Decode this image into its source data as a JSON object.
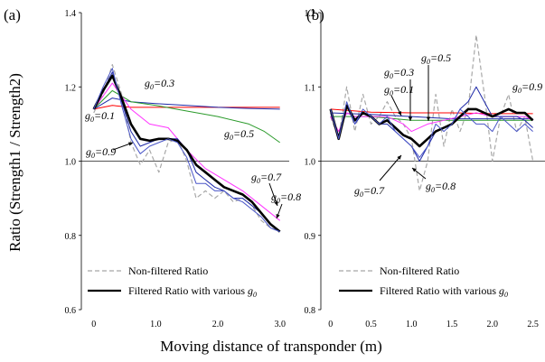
{
  "figure": {
    "ylabel": "Ratio (Strength1 / Strength2)",
    "xlabel": "Moving distance of transponder (m)"
  },
  "chart_data": [
    {
      "panel": "(a)",
      "type": "line",
      "ylim": [
        0.6,
        1.4
      ],
      "xlim": [
        -0.2,
        3.15
      ],
      "yticks": [
        "0.6",
        "0.8",
        "1.0",
        "1.2",
        "1.4"
      ],
      "xticks": [
        {
          "value": 0,
          "label": "0"
        },
        {
          "value": 1,
          "label": "1.0"
        },
        {
          "value": 2,
          "label": "2.0"
        },
        {
          "value": 3,
          "label": "3.0"
        }
      ],
      "reference_line": 1.0,
      "legend": [
        {
          "label": "Non-filtered Ratio",
          "style": "dashed",
          "color": "#a8a8a8"
        },
        {
          "label": "Filtered Ratio with various g0",
          "style": "solid",
          "color": "#000000"
        }
      ],
      "series": [
        {
          "name": "Non-filtered Ratio",
          "color": "#a8a8a8",
          "width": 1.2,
          "dash": "5,3",
          "x": [
            0,
            0.15,
            0.3,
            0.45,
            0.6,
            0.75,
            0.9,
            1.05,
            1.2,
            1.35,
            1.5,
            1.65,
            1.8,
            1.95,
            2.1,
            2.25,
            2.4,
            2.55,
            2.7,
            2.85,
            3.0
          ],
          "y": [
            1.13,
            1.18,
            1.26,
            1.18,
            1.05,
            0.99,
            1.03,
            0.97,
            1.05,
            1.06,
            1.0,
            0.9,
            0.92,
            0.9,
            0.92,
            0.89,
            0.9,
            0.88,
            0.84,
            0.82,
            0.81
          ]
        },
        {
          "name": "g0=0.1",
          "color": "#ff0000",
          "width": 1,
          "x": [
            0,
            0.3,
            0.6,
            1.0,
            1.5,
            2.0,
            2.5,
            3.0
          ],
          "y": [
            1.14,
            1.15,
            1.145,
            1.145,
            1.145,
            1.145,
            1.145,
            1.145
          ]
        },
        {
          "name": "g0=0.3",
          "color": "#1f2aa8",
          "width": 1,
          "x": [
            0,
            0.3,
            0.6,
            1.0,
            1.5,
            2.0,
            2.5,
            3.0
          ],
          "y": [
            1.14,
            1.17,
            1.16,
            1.155,
            1.15,
            1.145,
            1.142,
            1.14
          ]
        },
        {
          "name": "g0=0.5",
          "color": "#2a9a2a",
          "width": 1,
          "x": [
            0,
            0.3,
            0.6,
            1.0,
            1.5,
            2.0,
            2.5,
            2.75,
            3.0
          ],
          "y": [
            1.14,
            1.19,
            1.16,
            1.15,
            1.135,
            1.12,
            1.1,
            1.08,
            1.05
          ]
        },
        {
          "name": "g0=0.7",
          "color": "#ff33ff",
          "width": 1,
          "x": [
            0,
            0.3,
            0.6,
            0.9,
            1.2,
            1.5,
            1.8,
            2.1,
            2.4,
            2.7,
            3.0
          ],
          "y": [
            1.14,
            1.21,
            1.14,
            1.1,
            1.09,
            1.03,
            0.98,
            0.95,
            0.92,
            0.88,
            0.84
          ]
        },
        {
          "name": "g0=0.8",
          "color": "#1f2aa8",
          "width": 1,
          "x": [
            0,
            0.15,
            0.3,
            0.45,
            0.6,
            0.75,
            0.9,
            1.05,
            1.2,
            1.35,
            1.5,
            1.65,
            1.8,
            1.95,
            2.1,
            2.25,
            2.4,
            2.55,
            2.7,
            2.85,
            3.0
          ],
          "y": [
            1.14,
            1.19,
            1.24,
            1.16,
            1.08,
            1.04,
            1.05,
            1.06,
            1.06,
            1.06,
            1.03,
            0.97,
            0.95,
            0.93,
            0.92,
            0.9,
            0.9,
            0.88,
            0.86,
            0.83,
            0.81
          ]
        },
        {
          "name": "g0=0.9",
          "color": "#000000",
          "width": 2.6,
          "x": [
            0,
            0.15,
            0.3,
            0.45,
            0.6,
            0.75,
            0.9,
            1.05,
            1.2,
            1.35,
            1.5,
            1.65,
            1.8,
            1.95,
            2.1,
            2.25,
            2.4,
            2.55,
            2.7,
            2.85,
            3.0
          ],
          "y": [
            1.14,
            1.19,
            1.23,
            1.17,
            1.1,
            1.06,
            1.055,
            1.06,
            1.06,
            1.055,
            1.03,
            0.99,
            0.97,
            0.95,
            0.93,
            0.92,
            0.91,
            0.89,
            0.86,
            0.83,
            0.81
          ]
        },
        {
          "name": "g0=0.9 (blue)",
          "color": "#4a56c8",
          "width": 1,
          "x": [
            0,
            0.15,
            0.3,
            0.45,
            0.6,
            0.75,
            0.9,
            1.05,
            1.2,
            1.35,
            1.5,
            1.65,
            1.8,
            1.95,
            2.1,
            2.25,
            2.4,
            2.55,
            2.7,
            2.85,
            3.0
          ],
          "y": [
            1.14,
            1.2,
            1.25,
            1.15,
            1.06,
            1.02,
            1.04,
            1.05,
            1.06,
            1.05,
            1.01,
            0.94,
            0.94,
            0.92,
            0.92,
            0.9,
            0.89,
            0.87,
            0.85,
            0.82,
            0.81
          ]
        }
      ],
      "annotations": [
        {
          "text": "g0=0.3"
        },
        {
          "text": "g0=0.1"
        },
        {
          "text": "g0=0.5"
        },
        {
          "text": "g0=0.9"
        },
        {
          "text": "g0=0.7"
        },
        {
          "text": "g0=0.8"
        }
      ]
    },
    {
      "panel": "(b)",
      "type": "line",
      "ylim": [
        0.8,
        1.2
      ],
      "xlim": [
        -0.12,
        2.65
      ],
      "yticks": [
        "0.8",
        "0.9",
        "1.0",
        "1.1",
        "1.2"
      ],
      "xticks": [
        {
          "value": 0,
          "label": "0"
        },
        {
          "value": 0.5,
          "label": "0.5"
        },
        {
          "value": 1.0,
          "label": "1.0"
        },
        {
          "value": 1.5,
          "label": "1.5"
        },
        {
          "value": 2.0,
          "label": "2.0"
        },
        {
          "value": 2.5,
          "label": "2.5"
        }
      ],
      "reference_line": 1.0,
      "legend": [
        {
          "label": "Non-filtered Ratio",
          "style": "dashed",
          "color": "#a8a8a8"
        },
        {
          "label": "Filtered Ratio with various g0",
          "style": "solid",
          "color": "#000000"
        }
      ],
      "series": [
        {
          "name": "Non-filtered Ratio",
          "color": "#a8a8a8",
          "width": 1.2,
          "dash": "5,3",
          "x": [
            0,
            0.1,
            0.2,
            0.3,
            0.4,
            0.5,
            0.6,
            0.7,
            0.8,
            0.9,
            1.0,
            1.1,
            1.2,
            1.3,
            1.4,
            1.5,
            1.6,
            1.7,
            1.8,
            1.9,
            2.0,
            2.1,
            2.2,
            2.3,
            2.4,
            2.5
          ],
          "y": [
            1.06,
            1.03,
            1.1,
            1.04,
            1.09,
            1.05,
            1.06,
            1.08,
            1.06,
            1.05,
            1.03,
            0.96,
            1.0,
            1.09,
            1.02,
            1.07,
            1.04,
            1.07,
            1.17,
            1.09,
            1.0,
            1.06,
            1.09,
            1.04,
            1.06,
            1.0
          ]
        },
        {
          "name": "g0=0.1",
          "color": "#ff0000",
          "width": 1,
          "x": [
            0,
            0.5,
            1.0,
            1.5,
            2.0,
            2.5
          ],
          "y": [
            1.07,
            1.066,
            1.065,
            1.065,
            1.064,
            1.064
          ]
        },
        {
          "name": "g0=0.3",
          "color": "#1f2aa8",
          "width": 1,
          "x": [
            0,
            0.5,
            1.0,
            1.5,
            2.0,
            2.5
          ],
          "y": [
            1.065,
            1.063,
            1.06,
            1.057,
            1.057,
            1.057
          ]
        },
        {
          "name": "g0=0.5",
          "color": "#2a9a2a",
          "width": 1,
          "x": [
            0,
            0.5,
            1.0,
            1.5,
            2.0,
            2.5
          ],
          "y": [
            1.06,
            1.06,
            1.055,
            1.055,
            1.055,
            1.055
          ]
        },
        {
          "name": "g0=0.7",
          "color": "#ff33ff",
          "width": 1,
          "x": [
            0,
            0.1,
            0.2,
            0.3,
            0.5,
            0.7,
            0.8,
            0.9,
            1.0,
            1.2,
            1.4,
            1.6,
            1.8,
            2.0,
            2.2,
            2.4,
            2.5
          ],
          "y": [
            1.06,
            1.04,
            1.065,
            1.06,
            1.06,
            1.06,
            1.055,
            1.05,
            1.04,
            1.05,
            1.055,
            1.06,
            1.065,
            1.06,
            1.06,
            1.06,
            1.055
          ]
        },
        {
          "name": "g0=0.8",
          "color": "#1f2aa8",
          "width": 1,
          "x": [
            0,
            0.1,
            0.2,
            0.3,
            0.4,
            0.5,
            0.6,
            0.7,
            0.8,
            0.9,
            1.0,
            1.1,
            1.2,
            1.3,
            1.4,
            1.5,
            1.6,
            1.7,
            1.8,
            1.9,
            2.0,
            2.1,
            2.2,
            2.3,
            2.4,
            2.5
          ],
          "y": [
            1.065,
            1.03,
            1.075,
            1.05,
            1.065,
            1.06,
            1.05,
            1.05,
            1.04,
            1.03,
            1.02,
            1.0,
            1.02,
            1.04,
            1.045,
            1.05,
            1.07,
            1.08,
            1.1,
            1.08,
            1.06,
            1.06,
            1.06,
            1.06,
            1.055,
            1.045
          ]
        },
        {
          "name": "g0=0.9",
          "color": "#000000",
          "width": 2.6,
          "x": [
            0,
            0.1,
            0.2,
            0.3,
            0.4,
            0.5,
            0.6,
            0.7,
            0.8,
            0.9,
            1.0,
            1.1,
            1.2,
            1.3,
            1.4,
            1.5,
            1.6,
            1.7,
            1.8,
            1.9,
            2.0,
            2.1,
            2.2,
            2.3,
            2.4,
            2.5
          ],
          "y": [
            1.07,
            1.03,
            1.075,
            1.055,
            1.065,
            1.06,
            1.05,
            1.055,
            1.045,
            1.035,
            1.03,
            1.02,
            1.03,
            1.04,
            1.045,
            1.05,
            1.06,
            1.07,
            1.07,
            1.065,
            1.06,
            1.065,
            1.07,
            1.065,
            1.065,
            1.055
          ]
        },
        {
          "name": "g0=0.9 (blue)",
          "color": "#4a56c8",
          "width": 1,
          "x": [
            0,
            0.1,
            0.2,
            0.3,
            0.4,
            0.5,
            0.6,
            0.7,
            0.8,
            0.9,
            1.0,
            1.1,
            1.2,
            1.3,
            1.4,
            1.5,
            1.6,
            1.7,
            1.8,
            1.9,
            2.0,
            2.1,
            2.2,
            2.3,
            2.4,
            2.5
          ],
          "y": [
            1.07,
            1.03,
            1.08,
            1.05,
            1.07,
            1.06,
            1.05,
            1.06,
            1.04,
            1.03,
            1.02,
            1.005,
            1.02,
            1.05,
            1.04,
            1.05,
            1.07,
            1.06,
            1.05,
            1.05,
            1.04,
            1.06,
            1.05,
            1.04,
            1.05,
            1.04
          ]
        }
      ],
      "annotations": [
        {
          "text": "g0=0.5"
        },
        {
          "text": "g0=0.3"
        },
        {
          "text": "g0=0.1"
        },
        {
          "text": "g0=0.9"
        },
        {
          "text": "g0=0.7"
        },
        {
          "text": "g0=0.8"
        }
      ]
    }
  ]
}
